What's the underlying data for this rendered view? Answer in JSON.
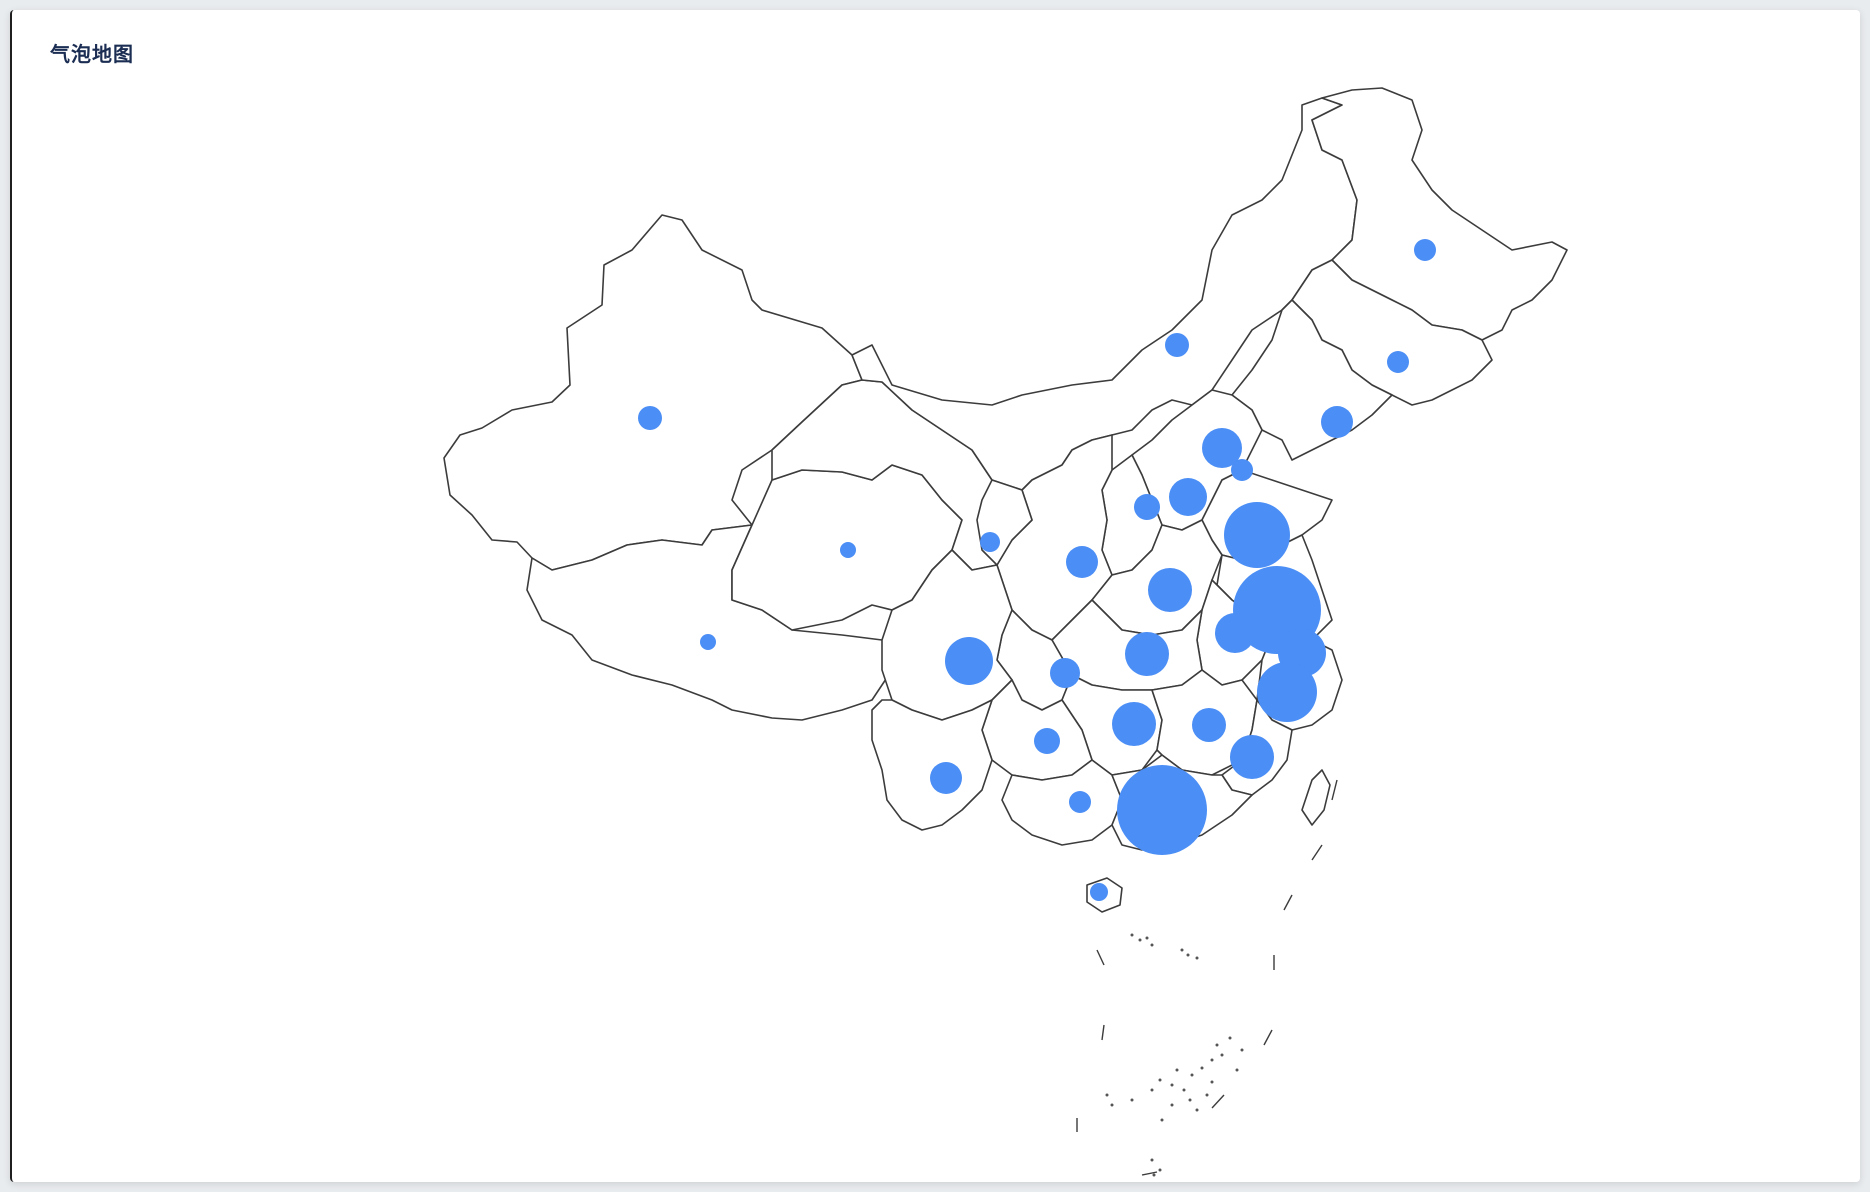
{
  "title": "气泡地图",
  "colors": {
    "bubble": "#4b8ef5",
    "border": "#3c3c3c",
    "background": "#ffffff",
    "title": "#1b2d52"
  },
  "bubbles": [
    {
      "region": "heilongjiang",
      "r": 11
    },
    {
      "region": "jilin",
      "r": 11
    },
    {
      "region": "liaoning",
      "r": 16
    },
    {
      "region": "inner-mongolia",
      "r": 12
    },
    {
      "region": "xinjiang",
      "r": 12
    },
    {
      "region": "beijing",
      "r": 20
    },
    {
      "region": "tianjin",
      "r": 11
    },
    {
      "region": "hebei",
      "r": 19
    },
    {
      "region": "shanxi",
      "r": 13
    },
    {
      "region": "shandong",
      "r": 33
    },
    {
      "region": "ningxia",
      "r": 10
    },
    {
      "region": "qinghai",
      "r": 8
    },
    {
      "region": "shaanxi",
      "r": 16
    },
    {
      "region": "henan",
      "r": 22
    },
    {
      "region": "jiangsu",
      "r": 44
    },
    {
      "region": "anhui",
      "r": 20
    },
    {
      "region": "shanghai",
      "r": 24
    },
    {
      "region": "zhejiang",
      "r": 30
    },
    {
      "region": "tibet",
      "r": 8
    },
    {
      "region": "sichuan",
      "r": 24
    },
    {
      "region": "chongqing",
      "r": 15
    },
    {
      "region": "hubei",
      "r": 22
    },
    {
      "region": "hunan",
      "r": 22
    },
    {
      "region": "jiangxi",
      "r": 17
    },
    {
      "region": "fujian",
      "r": 22
    },
    {
      "region": "guizhou",
      "r": 13
    },
    {
      "region": "yunnan",
      "r": 16
    },
    {
      "region": "guangxi",
      "r": 11
    },
    {
      "region": "guangdong",
      "r": 45
    },
    {
      "region": "hainan",
      "r": 9
    }
  ]
}
